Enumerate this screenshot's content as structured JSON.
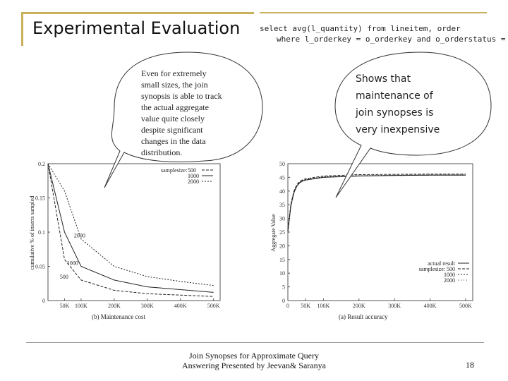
{
  "slide": {
    "title": "Experimental Evaluation",
    "sql_line1": "select avg(l_quantity) from lineitem, order",
    "sql_line2": "where l_orderkey = o_orderkey and o_orderstatus = F",
    "bubble_left": [
      "Even for extremely",
      "small sizes, the join",
      "synopsis is able to track",
      "the actual aggregate",
      "value quite closely",
      "despite significant",
      "changes in the data",
      "distribution."
    ],
    "bubble_right": [
      "Shows that",
      "maintenance of",
      "join synopses is",
      "very inexpensive"
    ],
    "footer_line1": "Join Synopses for Approximate Query",
    "footer_line2": "Answering   Presented by Jeevan& Saranya",
    "page_number": "18",
    "colors": {
      "accent": "#c9b15b",
      "bubble_border": "#333333"
    }
  },
  "chart_data": [
    {
      "type": "line",
      "caption": "(b) Maintenance cost",
      "ylabel": "cumulative % of inserts sampled",
      "x": [
        "50K",
        "100K",
        "200K",
        "300K",
        "400K",
        "500K"
      ],
      "x_values": [
        50000,
        100000,
        200000,
        300000,
        400000,
        500000
      ],
      "ylim": [
        0,
        0.2
      ],
      "yticks": [
        "0",
        "0.05",
        "0.1",
        "0.15",
        "0.2"
      ],
      "legend_title": "samplesize:",
      "series": [
        {
          "name": "500",
          "values": [
            0.06,
            0.03,
            0.015,
            0.01,
            0.008,
            0.006
          ]
        },
        {
          "name": "1000",
          "values": [
            0.1,
            0.05,
            0.03,
            0.02,
            0.016,
            0.012
          ]
        },
        {
          "name": "2000",
          "values": [
            0.16,
            0.09,
            0.05,
            0.035,
            0.028,
            0.022
          ]
        }
      ]
    },
    {
      "type": "line",
      "caption": "(a) Result accuracy",
      "ylabel": "Aggregate Value",
      "x": [
        "0",
        "50K",
        "100K",
        "200K",
        "300K",
        "400K",
        "500K"
      ],
      "x_values": [
        0,
        50000,
        100000,
        200000,
        300000,
        400000,
        500000
      ],
      "ylim": [
        0,
        50
      ],
      "yticks": [
        "0",
        "5",
        "10",
        "15",
        "20",
        "25",
        "30",
        "35",
        "40",
        "45",
        "50"
      ],
      "legend_title": "samplesize:",
      "series": [
        {
          "name": "actual result",
          "values": [
            25,
            44,
            45,
            45.5,
            45.7,
            45.8,
            45.8
          ]
        },
        {
          "name": "500",
          "values": [
            26,
            44.5,
            45.5,
            46,
            46.1,
            46.2,
            46.2
          ]
        },
        {
          "name": "1000",
          "values": [
            25.5,
            44.2,
            45.2,
            45.6,
            45.8,
            45.9,
            45.9
          ]
        },
        {
          "name": "2000",
          "values": [
            25.2,
            44.1,
            45.1,
            45.5,
            45.7,
            45.8,
            45.8
          ]
        }
      ]
    }
  ]
}
